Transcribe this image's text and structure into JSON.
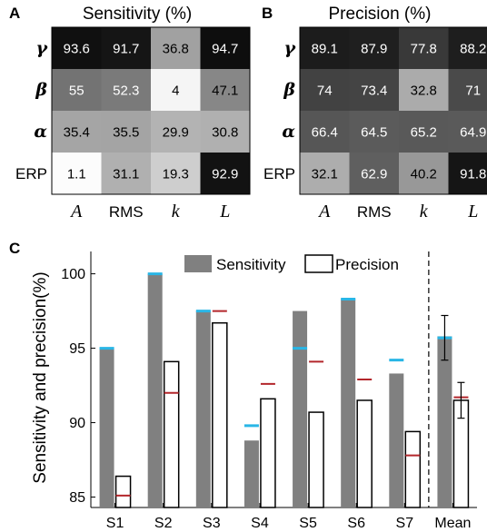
{
  "heatmaps": [
    {
      "panel": "A",
      "title": "Sensitivity (%)",
      "rows": [
        "γ",
        "β",
        "α",
        "ERP"
      ],
      "cols": [
        "A",
        "RMS",
        "k",
        "L"
      ],
      "values": [
        [
          93.6,
          91.7,
          36.8,
          94.7
        ],
        [
          55,
          52.3,
          4,
          47.1
        ],
        [
          35.4,
          35.5,
          29.9,
          30.8
        ],
        [
          1.1,
          31.1,
          19.3,
          92.9
        ]
      ],
      "cells": [
        [
          "93.6",
          "91.7",
          "36.8",
          "94.7"
        ],
        [
          "55",
          "52.3",
          "4",
          "47.1"
        ],
        [
          "35.4",
          "35.5",
          "29.9",
          "30.8"
        ],
        [
          "1.1",
          "31.1",
          "19.3",
          "92.9"
        ]
      ]
    },
    {
      "panel": "B",
      "title": "Precision (%)",
      "rows": [
        "γ",
        "β",
        "α",
        "ERP"
      ],
      "cols": [
        "A",
        "RMS",
        "k",
        "L"
      ],
      "values": [
        [
          89.1,
          87.9,
          77.8,
          88.2
        ],
        [
          74,
          73.4,
          32.8,
          71
        ],
        [
          66.4,
          64.5,
          65.2,
          64.9
        ],
        [
          32.1,
          62.9,
          40.2,
          91.8
        ]
      ],
      "cells": [
        [
          "89.1",
          "87.9",
          "77.8",
          "88.2"
        ],
        [
          "74",
          "73.4",
          "32.8",
          "71"
        ],
        [
          "66.4",
          "64.5",
          "65.2",
          "64.9"
        ],
        [
          "32.1",
          "62.9",
          "40.2",
          "91.8"
        ]
      ]
    }
  ],
  "chart_data": {
    "type": "bar",
    "panel": "C",
    "title": "",
    "xlabel": "",
    "ylabel": "Sensitivity and precision(%)",
    "ylim": [
      84.3,
      101.5
    ],
    "yticks": [
      85,
      90,
      95,
      100
    ],
    "categories": [
      "S1",
      "S2",
      "S3",
      "S4",
      "S5",
      "S6",
      "S7",
      "Mean"
    ],
    "series": [
      {
        "name": "Sensitivity",
        "values": [
          95.0,
          100.0,
          97.5,
          88.8,
          97.5,
          98.3,
          93.3,
          95.8
        ],
        "color": "#808080"
      },
      {
        "name": "Precision",
        "values": [
          86.4,
          94.1,
          96.7,
          91.6,
          90.7,
          91.5,
          89.4,
          91.5
        ],
        "color": "#ffffff"
      }
    ],
    "blue_markers": [
      95.0,
      100.0,
      97.5,
      89.8,
      95.0,
      98.3,
      94.2,
      95.7
    ],
    "red_markers": [
      85.1,
      92.0,
      97.5,
      92.6,
      94.1,
      92.9,
      87.8,
      91.7
    ],
    "mean_error": {
      "sensitivity": [
        94.2,
        97.2
      ],
      "precision": [
        90.3,
        92.7
      ]
    },
    "marker_colors": {
      "blue": "#29b6e6",
      "red": "#b3262b"
    },
    "separator_before": "Mean",
    "legend_position": "top"
  }
}
